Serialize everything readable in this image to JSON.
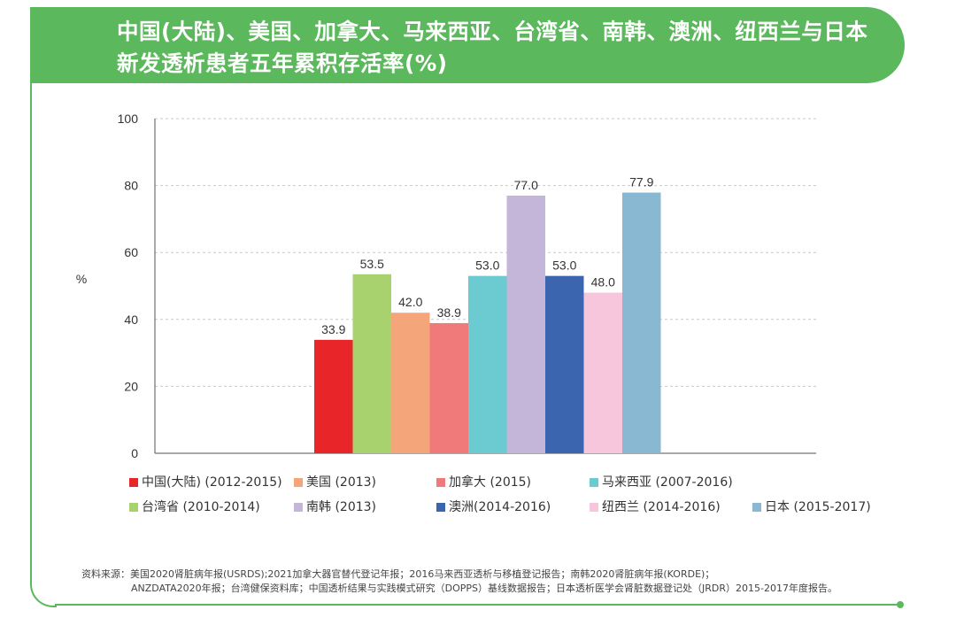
{
  "header": {
    "title_line1": "中国(大陆)、美国、加拿大、马来西亚、台湾省、南韩、澳洲、纽西兰与日本",
    "title_line2": "新发透析患者五年累积存活率(%)",
    "color": "#5cb85c"
  },
  "chart_data": {
    "type": "bar",
    "title": "中国(大陆)、美国、加拿大、马来西亚、台湾省、南韩、澳洲、纽西兰与日本新发透析患者五年累积存活率(%)",
    "xlabel": "",
    "ylabel": "%",
    "ylim": [
      0,
      100
    ],
    "yticks": [
      0,
      20,
      40,
      60,
      80,
      100
    ],
    "grid": true,
    "legend_position": "bottom",
    "categories": [
      "中国(大陆) (2012-2015)",
      "台湾省 (2010-2014)",
      "美国 (2013)",
      "加拿大 (2015)",
      "马来西亚 (2007-2016)",
      "南韩 (2013)",
      "澳洲(2014-2016)",
      "纽西兰 (2014-2016)",
      "日本 (2015-2017)"
    ],
    "values": [
      33.9,
      53.5,
      42.0,
      38.9,
      53.0,
      77.0,
      53.0,
      48.0,
      77.9
    ],
    "value_labels": [
      "33.9",
      "53.5",
      "42.0",
      "38.9",
      "53.0",
      "77.0",
      "53.0",
      "48.0",
      "77.9"
    ],
    "colors": [
      "#e8262a",
      "#a8d26e",
      "#f5a57a",
      "#f07a7a",
      "#6bcbd0",
      "#c4b6d8",
      "#3c65b0",
      "#f7c6dc",
      "#88b8d2"
    ]
  },
  "legend": {
    "row1": [
      {
        "label": "中国(大陆) (2012-2015)",
        "color": "#e8262a"
      },
      {
        "label": "美国 (2013)",
        "color": "#f5a57a"
      },
      {
        "label": "加拿大 (2015)",
        "color": "#f07a7a"
      },
      {
        "label": "马来西亚 (2007-2016)",
        "color": "#6bcbd0"
      }
    ],
    "row2": [
      {
        "label": "台湾省 (2010-2014)",
        "color": "#a8d26e"
      },
      {
        "label": "南韩 (2013)",
        "color": "#c4b6d8"
      },
      {
        "label": "澳洲(2014-2016)",
        "color": "#3c65b0"
      },
      {
        "label": "纽西兰 (2014-2016)",
        "color": "#f7c6dc"
      },
      {
        "label": "日本 (2015-2017)",
        "color": "#88b8d2"
      }
    ]
  },
  "source": {
    "line1": "资料来源：美国2020肾脏病年报(USRDS);2021加拿大器官替代登记年报；2016马来西亚透析与移植登记报告；南韩2020肾脏病年报(KORDE)；",
    "line2": "ANZDATA2020年报；台湾健保资料库；中国透析结果与实践模式研究（DOPPS）基线数据报告；日本透析医学会肾脏数据登记处（JRDR）2015-2017年度报告。"
  }
}
